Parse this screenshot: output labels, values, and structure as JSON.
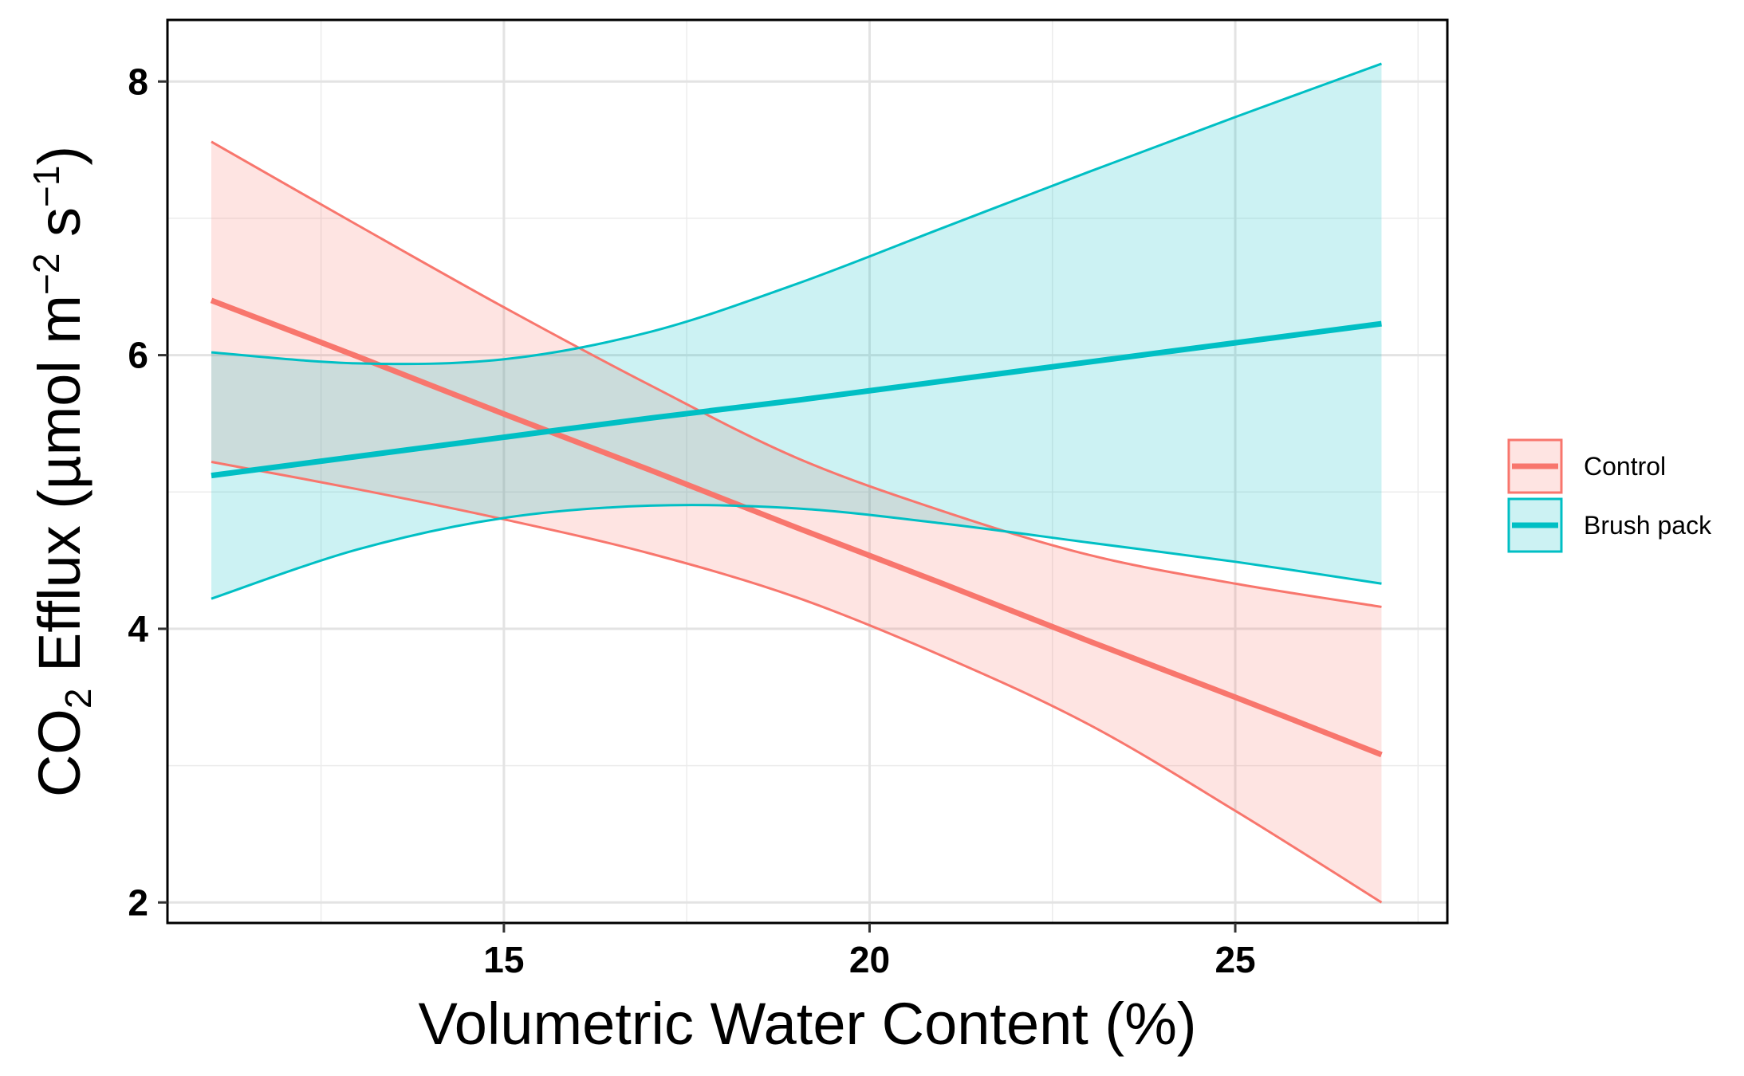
{
  "chart_data": {
    "type": "line",
    "xlabel": "Volumetric Water Content (%)",
    "ylabel": {
      "base": "CO",
      "sub": "2",
      "main": " Efflux (µmol m",
      "sup1": "−2",
      "mid": " s",
      "sup2": "−1",
      "end": ")"
    },
    "xlim": [
      10.4,
      27.9
    ],
    "ylim": [
      1.85,
      8.45
    ],
    "x_ticks": [
      15,
      20,
      25
    ],
    "x_tick_labels": [
      "15",
      "20",
      "25"
    ],
    "y_ticks": [
      2,
      4,
      6,
      8
    ],
    "y_tick_labels": [
      "2",
      "4",
      "6",
      "8"
    ],
    "x_minor_grid": [
      12.5,
      17.5,
      22.5,
      27.5
    ],
    "y_minor_grid": [
      3,
      5,
      7
    ],
    "grid": true,
    "legend_position": "right",
    "series": [
      {
        "name": "Control",
        "color": "#F8766D",
        "x": [
          11,
          13,
          15,
          17,
          19,
          21,
          23,
          25,
          27
        ],
        "fit": [
          6.4,
          5.99,
          5.57,
          5.16,
          4.74,
          4.33,
          3.91,
          3.5,
          3.08
        ],
        "lower": [
          5.22,
          5.02,
          4.8,
          4.55,
          4.23,
          3.8,
          3.3,
          2.67,
          2.0
        ],
        "upper": [
          7.56,
          6.95,
          6.35,
          5.78,
          5.25,
          4.86,
          4.54,
          4.33,
          4.16
        ]
      },
      {
        "name": "Brush pack",
        "color": "#00BFC4",
        "x": [
          11,
          13,
          15,
          17,
          19,
          21,
          23,
          25,
          27
        ],
        "fit": [
          5.12,
          5.26,
          5.4,
          5.54,
          5.67,
          5.81,
          5.95,
          6.09,
          6.23
        ],
        "lower": [
          4.22,
          4.58,
          4.81,
          4.9,
          4.88,
          4.77,
          4.63,
          4.49,
          4.33
        ],
        "upper": [
          6.02,
          5.94,
          5.97,
          6.17,
          6.52,
          6.93,
          7.34,
          7.74,
          8.13
        ]
      }
    ]
  }
}
